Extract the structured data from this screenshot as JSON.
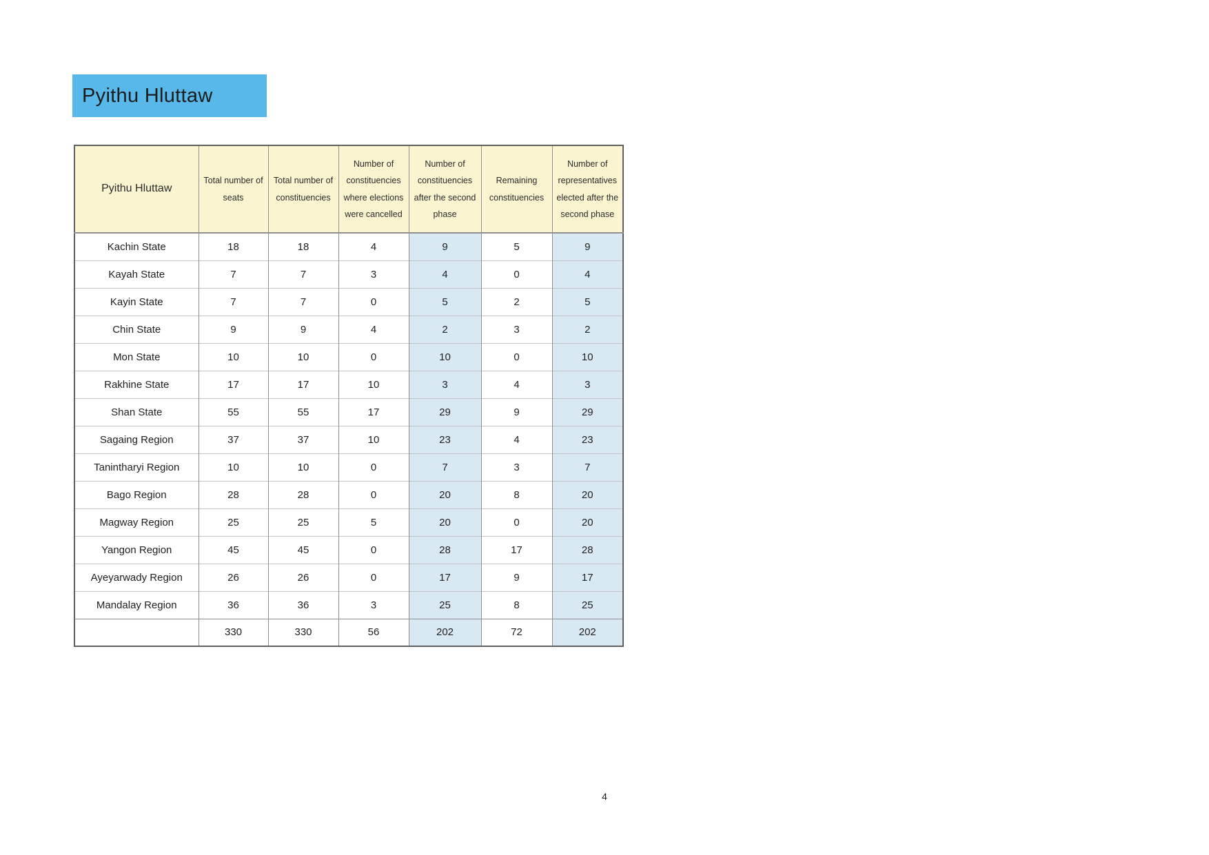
{
  "title": {
    "label": "Pyithu Hluttaw"
  },
  "page_footer": {
    "page_number": "4"
  },
  "colors": {
    "title_bg": "#58B8EA",
    "header_bg": "#FBF4D1",
    "highlight_bg": "#D9E9F3",
    "outer_border": "#5f5f5f",
    "grid_border": "#8f8f8f"
  },
  "table": {
    "columns": [
      {
        "id": "region",
        "label": "Pyithu Hluttaw",
        "highlight": false
      },
      {
        "id": "total-seats",
        "label": "Total number of seats",
        "highlight": false
      },
      {
        "id": "total-constituencies",
        "label": "Total number of constituencies",
        "highlight": false
      },
      {
        "id": "cancelled-constituencies",
        "label": "Number of constituencies where elections were cancelled",
        "highlight": false
      },
      {
        "id": "constituencies-after-second-phase",
        "label": "Number of constituencies after the second phase",
        "highlight": true
      },
      {
        "id": "remaining-constituencies",
        "label": "Remaining constituencies",
        "highlight": false
      },
      {
        "id": "representatives-after-second-phase",
        "label": "Number of representatives elected after the second phase",
        "highlight": true
      }
    ],
    "rows": [
      {
        "region": "Kachin State",
        "values": [
          "18",
          "18",
          "4",
          "9",
          "5",
          "9"
        ]
      },
      {
        "region": "Kayah State",
        "values": [
          "7",
          "7",
          "3",
          "4",
          "0",
          "4"
        ]
      },
      {
        "region": "Kayin State",
        "values": [
          "7",
          "7",
          "0",
          "5",
          "2",
          "5"
        ]
      },
      {
        "region": "Chin State",
        "values": [
          "9",
          "9",
          "4",
          "2",
          "3",
          "2"
        ]
      },
      {
        "region": "Mon State",
        "values": [
          "10",
          "10",
          "0",
          "10",
          "0",
          "10"
        ]
      },
      {
        "region": "Rakhine State",
        "values": [
          "17",
          "17",
          "10",
          "3",
          "4",
          "3"
        ]
      },
      {
        "region": "Shan State",
        "values": [
          "55",
          "55",
          "17",
          "29",
          "9",
          "29"
        ]
      },
      {
        "region": "Sagaing Region",
        "values": [
          "37",
          "37",
          "10",
          "23",
          "4",
          "23"
        ]
      },
      {
        "region": "Tanintharyi Region",
        "values": [
          "10",
          "10",
          "0",
          "7",
          "3",
          "7"
        ]
      },
      {
        "region": "Bago Region",
        "values": [
          "28",
          "28",
          "0",
          "20",
          "8",
          "20"
        ]
      },
      {
        "region": "Magway Region",
        "values": [
          "25",
          "25",
          "5",
          "20",
          "0",
          "20"
        ]
      },
      {
        "region": "Yangon Region",
        "values": [
          "45",
          "45",
          "0",
          "28",
          "17",
          "28"
        ]
      },
      {
        "region": "Ayeyarwady Region",
        "values": [
          "26",
          "26",
          "0",
          "17",
          "9",
          "17"
        ]
      },
      {
        "region": "Mandalay Region",
        "values": [
          "36",
          "36",
          "3",
          "25",
          "8",
          "25"
        ]
      }
    ],
    "total_row": {
      "region": "",
      "values": [
        "330",
        "330",
        "56",
        "202",
        "72",
        "202"
      ]
    }
  }
}
